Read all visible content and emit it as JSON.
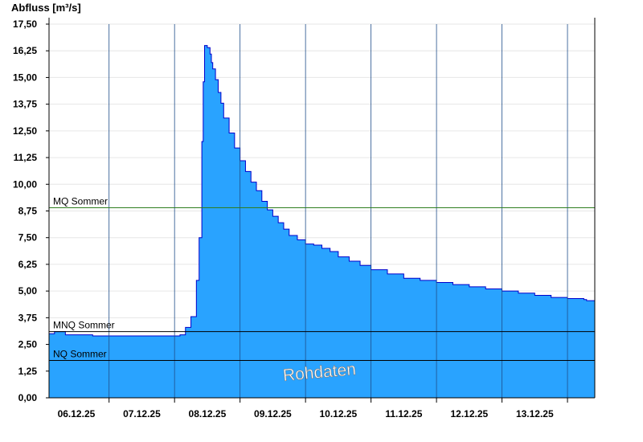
{
  "chart_data": {
    "type": "area",
    "ylabel": "Abfluss [m³/s]",
    "ylim": [
      0,
      17.5
    ],
    "yticks": [
      "0,00",
      "1,25",
      "2,50",
      "3,75",
      "5,00",
      "6,25",
      "7,50",
      "8,75",
      "10,00",
      "11,25",
      "12,50",
      "13,75",
      "15,00",
      "16,25",
      "17,50"
    ],
    "xlim": [
      "2025-12-05T14:00",
      "2025-12-13T22:00"
    ],
    "xticks": [
      {
        "date": "2025-12-06T00:00",
        "label": "06.12.25"
      },
      {
        "date": "2025-12-07T00:00",
        "label": "07.12.25"
      },
      {
        "date": "2025-12-08T00:00",
        "label": "08.12.25"
      },
      {
        "date": "2025-12-09T00:00",
        "label": "09.12.25"
      },
      {
        "date": "2025-12-10T00:00",
        "label": "10.12.25"
      },
      {
        "date": "2025-12-11T00:00",
        "label": "11.12.25"
      },
      {
        "date": "2025-12-12T00:00",
        "label": "12.12.25"
      },
      {
        "date": "2025-12-13T00:00",
        "label": "13.12.25"
      }
    ],
    "grid": "horizontal",
    "fill_color": "#29a3ff",
    "line_color": "#0000cc",
    "series": [
      {
        "x": [
          "2025-12-05T14:00",
          "2025-12-05T16:00",
          "2025-12-05T20:00",
          "2025-12-06T06:00",
          "2025-12-06T18:00",
          "2025-12-07T06:00",
          "2025-12-07T12:00",
          "2025-12-07T14:00",
          "2025-12-07T16:00",
          "2025-12-07T18:00",
          "2025-12-07T20:00",
          "2025-12-07T21:00",
          "2025-12-07T22:00",
          "2025-12-07T22:30",
          "2025-12-07T23:00",
          "2025-12-08T00:00",
          "2025-12-08T01:00",
          "2025-12-08T01:30",
          "2025-12-08T02:00",
          "2025-12-08T03:00",
          "2025-12-08T04:00",
          "2025-12-08T05:00",
          "2025-12-08T06:00",
          "2025-12-08T08:00",
          "2025-12-08T10:00",
          "2025-12-08T12:00",
          "2025-12-08T14:00",
          "2025-12-08T16:00",
          "2025-12-08T18:00",
          "2025-12-08T20:00",
          "2025-12-08T22:00",
          "2025-12-09T00:00",
          "2025-12-09T02:00",
          "2025-12-09T04:00",
          "2025-12-09T06:00",
          "2025-12-09T09:00",
          "2025-12-09T12:00",
          "2025-12-09T15:00",
          "2025-12-09T18:00",
          "2025-12-09T21:00",
          "2025-12-10T00:00",
          "2025-12-10T04:00",
          "2025-12-10T08:00",
          "2025-12-10T12:00",
          "2025-12-10T18:00",
          "2025-12-11T00:00",
          "2025-12-11T06:00",
          "2025-12-11T12:00",
          "2025-12-11T18:00",
          "2025-12-12T00:00",
          "2025-12-12T06:00",
          "2025-12-12T12:00",
          "2025-12-12T18:00",
          "2025-12-13T00:00",
          "2025-12-13T06:00",
          "2025-12-13T12:00",
          "2025-12-13T18:00",
          "2025-12-13T19:00",
          "2025-12-13T22:00"
        ],
        "y": [
          3.0,
          3.1,
          2.95,
          2.9,
          2.9,
          2.9,
          2.9,
          2.95,
          3.3,
          3.8,
          5.5,
          7.5,
          12.0,
          14.8,
          16.5,
          16.4,
          16.1,
          15.7,
          15.4,
          14.9,
          14.3,
          13.8,
          13.1,
          12.4,
          11.7,
          11.1,
          10.6,
          10.1,
          9.7,
          9.2,
          8.8,
          8.5,
          8.2,
          7.9,
          7.6,
          7.4,
          7.2,
          7.15,
          7.0,
          6.85,
          6.6,
          6.4,
          6.2,
          6.0,
          5.8,
          5.6,
          5.5,
          5.4,
          5.3,
          5.2,
          5.1,
          5.0,
          4.9,
          4.8,
          4.7,
          4.65,
          4.6,
          4.55,
          4.4
        ]
      }
    ],
    "reference_lines": [
      {
        "name": "MQ Sommer",
        "value": 8.9,
        "color": "#2e7d1e"
      },
      {
        "name": "MNQ Sommer",
        "value": 3.1,
        "color": "#000000"
      },
      {
        "name": "NQ Sommer",
        "value": 1.75,
        "color": "#000000"
      }
    ],
    "watermark": "Rohdaten"
  }
}
